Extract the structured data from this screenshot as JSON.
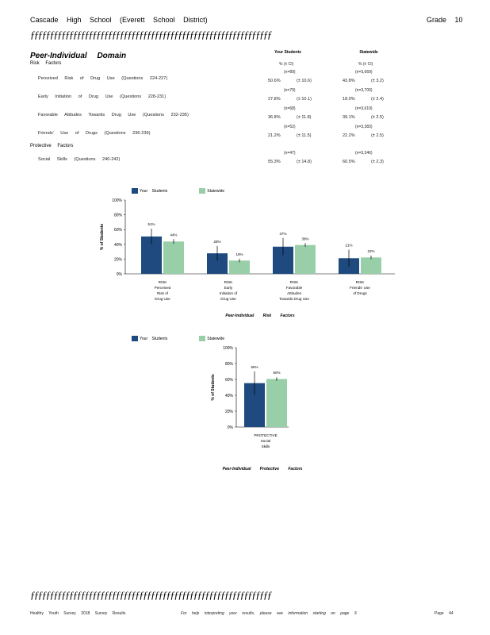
{
  "header": {
    "school": "Cascade High School (Everett School District)",
    "grade": "Grade 10"
  },
  "rule_text": "ƒƒƒƒƒƒƒƒƒƒƒƒƒƒƒƒƒƒƒƒƒƒƒƒƒƒƒƒƒƒƒƒƒƒƒƒƒƒƒƒƒƒƒƒƒƒƒƒƒƒƒƒƒƒƒƒƒƒƒƒƒƒ",
  "domain_title": "Peer-Individual Domain",
  "columns": {
    "your_students": "Your Students",
    "statewide": "Statewide",
    "pct_ci": "% (± CI)"
  },
  "risk_section": "Risk Factors",
  "protective_section": "Protective Factors",
  "rows": [
    {
      "label": "Perceived Risk of Drug Use (Questions 224-227)",
      "your_n": "(n=89)",
      "your_pct": "50.6%",
      "your_ci": "(± 10.6)",
      "state_n": "(n=3,669)",
      "state_pct": "43.8%",
      "state_ci": "(± 3.2)"
    },
    {
      "label": "Early Initiation of Drug Use (Questions 228-231)",
      "your_n": "(n=79)",
      "your_pct": "27.8%",
      "your_ci": "(± 10.1)",
      "state_n": "(n=3,700)",
      "state_pct": "18.0%",
      "state_ci": "(± 2.4)"
    },
    {
      "label": "Favorable Attitudes Towards Drug Use (Questions 232-235)",
      "your_n": "(n=68)",
      "your_pct": "36.8%",
      "your_ci": "(± 11.8)",
      "state_n": "(n=3,619)",
      "state_pct": "39.1%",
      "state_ci": "(± 2.5)"
    },
    {
      "label": "Friends' Use of Drugs (Questions 236-239)",
      "your_n": "(n=52)",
      "your_pct": "21.2%",
      "your_ci": "(± 11.5)",
      "state_n": "(n=3,383)",
      "state_pct": "22.2%",
      "state_ci": "(± 2.5)"
    },
    {
      "label": "Social Skills (Questions 240-242)",
      "your_n": "(n=47)",
      "your_pct": "55.3%",
      "your_ci": "(± 14.8)",
      "state_n": "(n=3,346)",
      "state_pct": "60.5%",
      "state_ci": "(± 2.3)"
    }
  ],
  "chart_data": [
    {
      "type": "bar",
      "ylabel": "% of Students",
      "xlabel": "Peer-Individual Risk Factors",
      "ylim": [
        0,
        100
      ],
      "yticks": [
        "0%",
        "20%",
        "40%",
        "60%",
        "80%",
        "100%"
      ],
      "categories": [
        [
          "RISK",
          "Perceived",
          "Risk of",
          "Drug Use"
        ],
        [
          "RISK",
          "Early",
          "Initiation of",
          "Drug Use"
        ],
        [
          "RISK",
          "Favorable",
          "Attitudes",
          "Towards Drug Use"
        ],
        [
          "RISK",
          "Friends' Use",
          "of Drugs"
        ]
      ],
      "series": [
        {
          "name": "Your Students",
          "color": "#1f4a7f",
          "values": [
            50.6,
            27.8,
            36.8,
            21.2
          ],
          "ci": [
            10.6,
            10.1,
            11.8,
            11.5
          ],
          "labels": [
            "51%",
            "28%",
            "37%",
            "21%"
          ]
        },
        {
          "name": "Statewide",
          "color": "#98cfa8",
          "values": [
            43.8,
            18.0,
            39.1,
            22.2
          ],
          "ci": [
            3.2,
            2.4,
            2.5,
            2.5
          ],
          "labels": [
            "44%",
            "18%",
            "39%",
            "22%"
          ]
        }
      ],
      "legend": "top-left",
      "grid": false
    },
    {
      "type": "bar",
      "ylabel": "% of Students",
      "xlabel": "Peer-Individual Protective Factors",
      "ylim": [
        0,
        100
      ],
      "yticks": [
        "0%",
        "20%",
        "40%",
        "60%",
        "80%",
        "100%"
      ],
      "categories": [
        [
          "PROTECTIVE",
          "Social",
          "Skills"
        ]
      ],
      "series": [
        {
          "name": "Your Students",
          "color": "#1f4a7f",
          "values": [
            55.3
          ],
          "ci": [
            14.8
          ],
          "labels": [
            "55%"
          ]
        },
        {
          "name": "Statewide",
          "color": "#98cfa8",
          "values": [
            60.5
          ],
          "ci": [
            2.3
          ],
          "labels": [
            "60%"
          ]
        }
      ],
      "legend": "top-left",
      "grid": false
    }
  ],
  "footer": {
    "left": "Healthy Youth Survey 2018 Survey Results",
    "middle": "For help interpreting your results, please see information starting on page 3.",
    "page": "Page 44"
  }
}
